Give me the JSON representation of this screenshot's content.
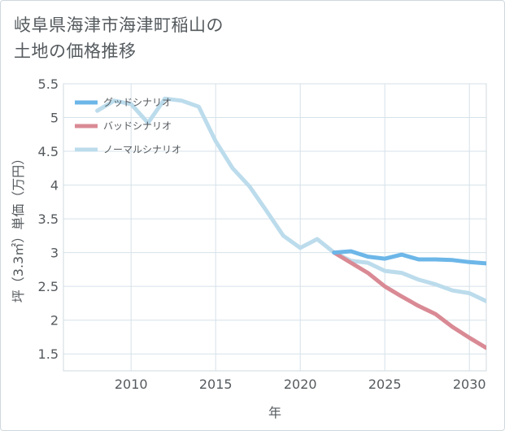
{
  "title_line1": "岐阜県海津市海津町稲山の",
  "title_line2": "土地の価格推移",
  "chart_data": {
    "type": "line",
    "xlabel": "年",
    "ylabel": "坪（3.3㎡）単価（万円）",
    "xlim": [
      2006,
      2031
    ],
    "ylim": [
      1.25,
      5.5
    ],
    "x_ticks": [
      2010,
      2015,
      2020,
      2025,
      2030
    ],
    "y_ticks": [
      1.5,
      2,
      2.5,
      3,
      3.5,
      4,
      4.5,
      5,
      5.5
    ],
    "grid": true,
    "legend_position": "top-left",
    "series": [
      {
        "name": "グッドシナリオ",
        "color": "#6cb6e8",
        "x": [
          2022,
          2023,
          2024,
          2025,
          2026,
          2027,
          2028,
          2029,
          2030,
          2031
        ],
        "values": [
          3.0,
          3.02,
          2.94,
          2.91,
          2.97,
          2.9,
          2.9,
          2.89,
          2.86,
          2.84
        ]
      },
      {
        "name": "バッドシナリオ",
        "color": "#d98a94",
        "x": [
          2022,
          2023,
          2024,
          2025,
          2026,
          2027,
          2028,
          2029,
          2030,
          2031
        ],
        "values": [
          3.0,
          2.85,
          2.7,
          2.5,
          2.35,
          2.21,
          2.09,
          1.9,
          1.74,
          1.59
        ]
      },
      {
        "name": "ノーマルシナリオ",
        "color": "#bcdcec",
        "x": [
          2008,
          2009,
          2010,
          2011,
          2012,
          2013,
          2014,
          2015,
          2016,
          2017,
          2018,
          2019,
          2020,
          2021,
          2022,
          2023,
          2024,
          2025,
          2026,
          2027,
          2028,
          2029,
          2030,
          2031
        ],
        "values": [
          5.1,
          5.25,
          5.2,
          4.92,
          5.28,
          5.25,
          5.16,
          4.65,
          4.25,
          3.98,
          3.62,
          3.25,
          3.07,
          3.2,
          3.0,
          2.88,
          2.85,
          2.73,
          2.7,
          2.6,
          2.53,
          2.44,
          2.4,
          2.28
        ]
      }
    ]
  }
}
